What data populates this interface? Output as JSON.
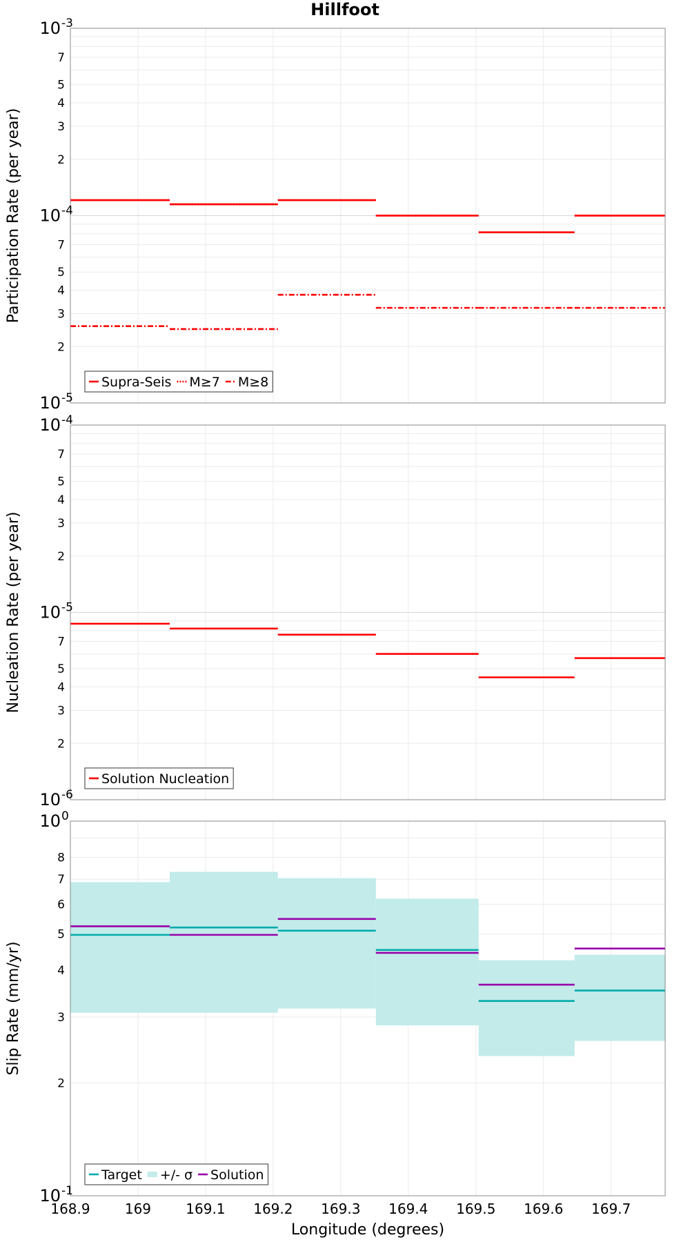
{
  "chart_data": [
    {
      "type": "line",
      "title": "Hillfoot",
      "ylabel": "Participation Rate (per year)",
      "yscale": "log",
      "ylim": [
        1e-05,
        0.001
      ],
      "xlim": [
        168.9,
        169.78
      ],
      "grid": true,
      "legend_position": "bottom-left",
      "x_ticks": [
        "168.9",
        "169",
        "169.1",
        "169.2",
        "169.3",
        "169.4",
        "169.5",
        "169.6",
        "169.7"
      ],
      "y_tick_labels": {
        "major": [
          "10^-5",
          "10^-4",
          "10^-3"
        ],
        "minor": [
          "2",
          "3",
          "4",
          "5",
          "7",
          "2",
          "3",
          "4",
          "5",
          "7"
        ]
      },
      "segments_x": [
        [
          168.9,
          169.047
        ],
        [
          169.047,
          169.207
        ],
        [
          169.207,
          169.352
        ],
        [
          169.352,
          169.504
        ],
        [
          169.504,
          169.646
        ],
        [
          169.646,
          169.78
        ]
      ],
      "series": [
        {
          "name": "Supra-Seis",
          "style": "solid",
          "color": "#ff0000",
          "values": [
            0.000121,
            0.000115,
            0.000121,
            0.0001,
            8.15e-05,
            0.0001
          ]
        },
        {
          "name": "M≥7",
          "style": "dotted",
          "color": "#ff0000",
          "values": [
            0.000121,
            0.000115,
            0.000121,
            0.0001,
            8.15e-05,
            0.0001
          ]
        },
        {
          "name": "M≥8",
          "style": "dashdot",
          "color": "#ff0000",
          "values": [
            2.57e-05,
            2.48e-05,
            3.78e-05,
            3.22e-05,
            3.22e-05,
            3.22e-05
          ]
        }
      ]
    },
    {
      "type": "line",
      "ylabel": "Nucleation Rate (per year)",
      "yscale": "log",
      "ylim": [
        1e-06,
        0.0001
      ],
      "xlim": [
        168.9,
        169.78
      ],
      "grid": true,
      "legend_position": "bottom-left",
      "x_ticks": [
        "168.9",
        "169",
        "169.1",
        "169.2",
        "169.3",
        "169.4",
        "169.5",
        "169.6",
        "169.7"
      ],
      "y_tick_labels": {
        "major": [
          "10^-6",
          "10^-5",
          "10^-4"
        ],
        "minor": [
          "2",
          "3",
          "4",
          "5",
          "7",
          "2",
          "3",
          "4",
          "5",
          "7"
        ]
      },
      "segments_x": [
        [
          168.9,
          169.047
        ],
        [
          169.047,
          169.207
        ],
        [
          169.207,
          169.352
        ],
        [
          169.352,
          169.504
        ],
        [
          169.504,
          169.646
        ],
        [
          169.646,
          169.78
        ]
      ],
      "series": [
        {
          "name": "Solution Nucleation",
          "style": "solid",
          "color": "#ff0000",
          "values": [
            8.7e-06,
            8.2e-06,
            7.6e-06,
            6e-06,
            4.5e-06,
            5.7e-06
          ]
        }
      ]
    },
    {
      "type": "line",
      "ylabel": "Slip Rate (mm/yr)",
      "xlabel": "Longitude (degrees)",
      "yscale": "log",
      "ylim": [
        0.1,
        1
      ],
      "y_unit_note": "tick labels 2..8 are tenths (0.2..0.8)",
      "xlim": [
        168.9,
        169.78
      ],
      "grid": true,
      "legend_position": "bottom-left",
      "x_ticks": [
        "168.9",
        "169",
        "169.1",
        "169.2",
        "169.3",
        "169.4",
        "169.5",
        "169.6",
        "169.7"
      ],
      "y_tick_labels": {
        "major": [
          "10^-1",
          "10^0"
        ],
        "minor": [
          "2",
          "3",
          "4",
          "5",
          "6",
          "7",
          "8"
        ]
      },
      "segments_x": [
        [
          168.9,
          169.047
        ],
        [
          169.047,
          169.207
        ],
        [
          169.207,
          169.352
        ],
        [
          169.352,
          169.504
        ],
        [
          169.504,
          169.646
        ],
        [
          169.646,
          169.78
        ]
      ],
      "series": [
        {
          "name": "Target",
          "style": "solid",
          "color": "#00aaaa",
          "values": [
            0.497,
            0.52,
            0.51,
            0.453,
            0.331,
            0.353
          ]
        },
        {
          "name": "+/- σ",
          "style": "band",
          "color": "#c2ebea",
          "lower": [
            0.308,
            0.308,
            0.316,
            0.285,
            0.236,
            0.259
          ],
          "upper": [
            0.687,
            0.732,
            0.704,
            0.621,
            0.425,
            0.44
          ]
        },
        {
          "name": "Solution",
          "style": "solid",
          "color": "#9900aa",
          "values": [
            0.524,
            0.497,
            0.548,
            0.445,
            0.366,
            0.457
          ]
        }
      ]
    }
  ]
}
